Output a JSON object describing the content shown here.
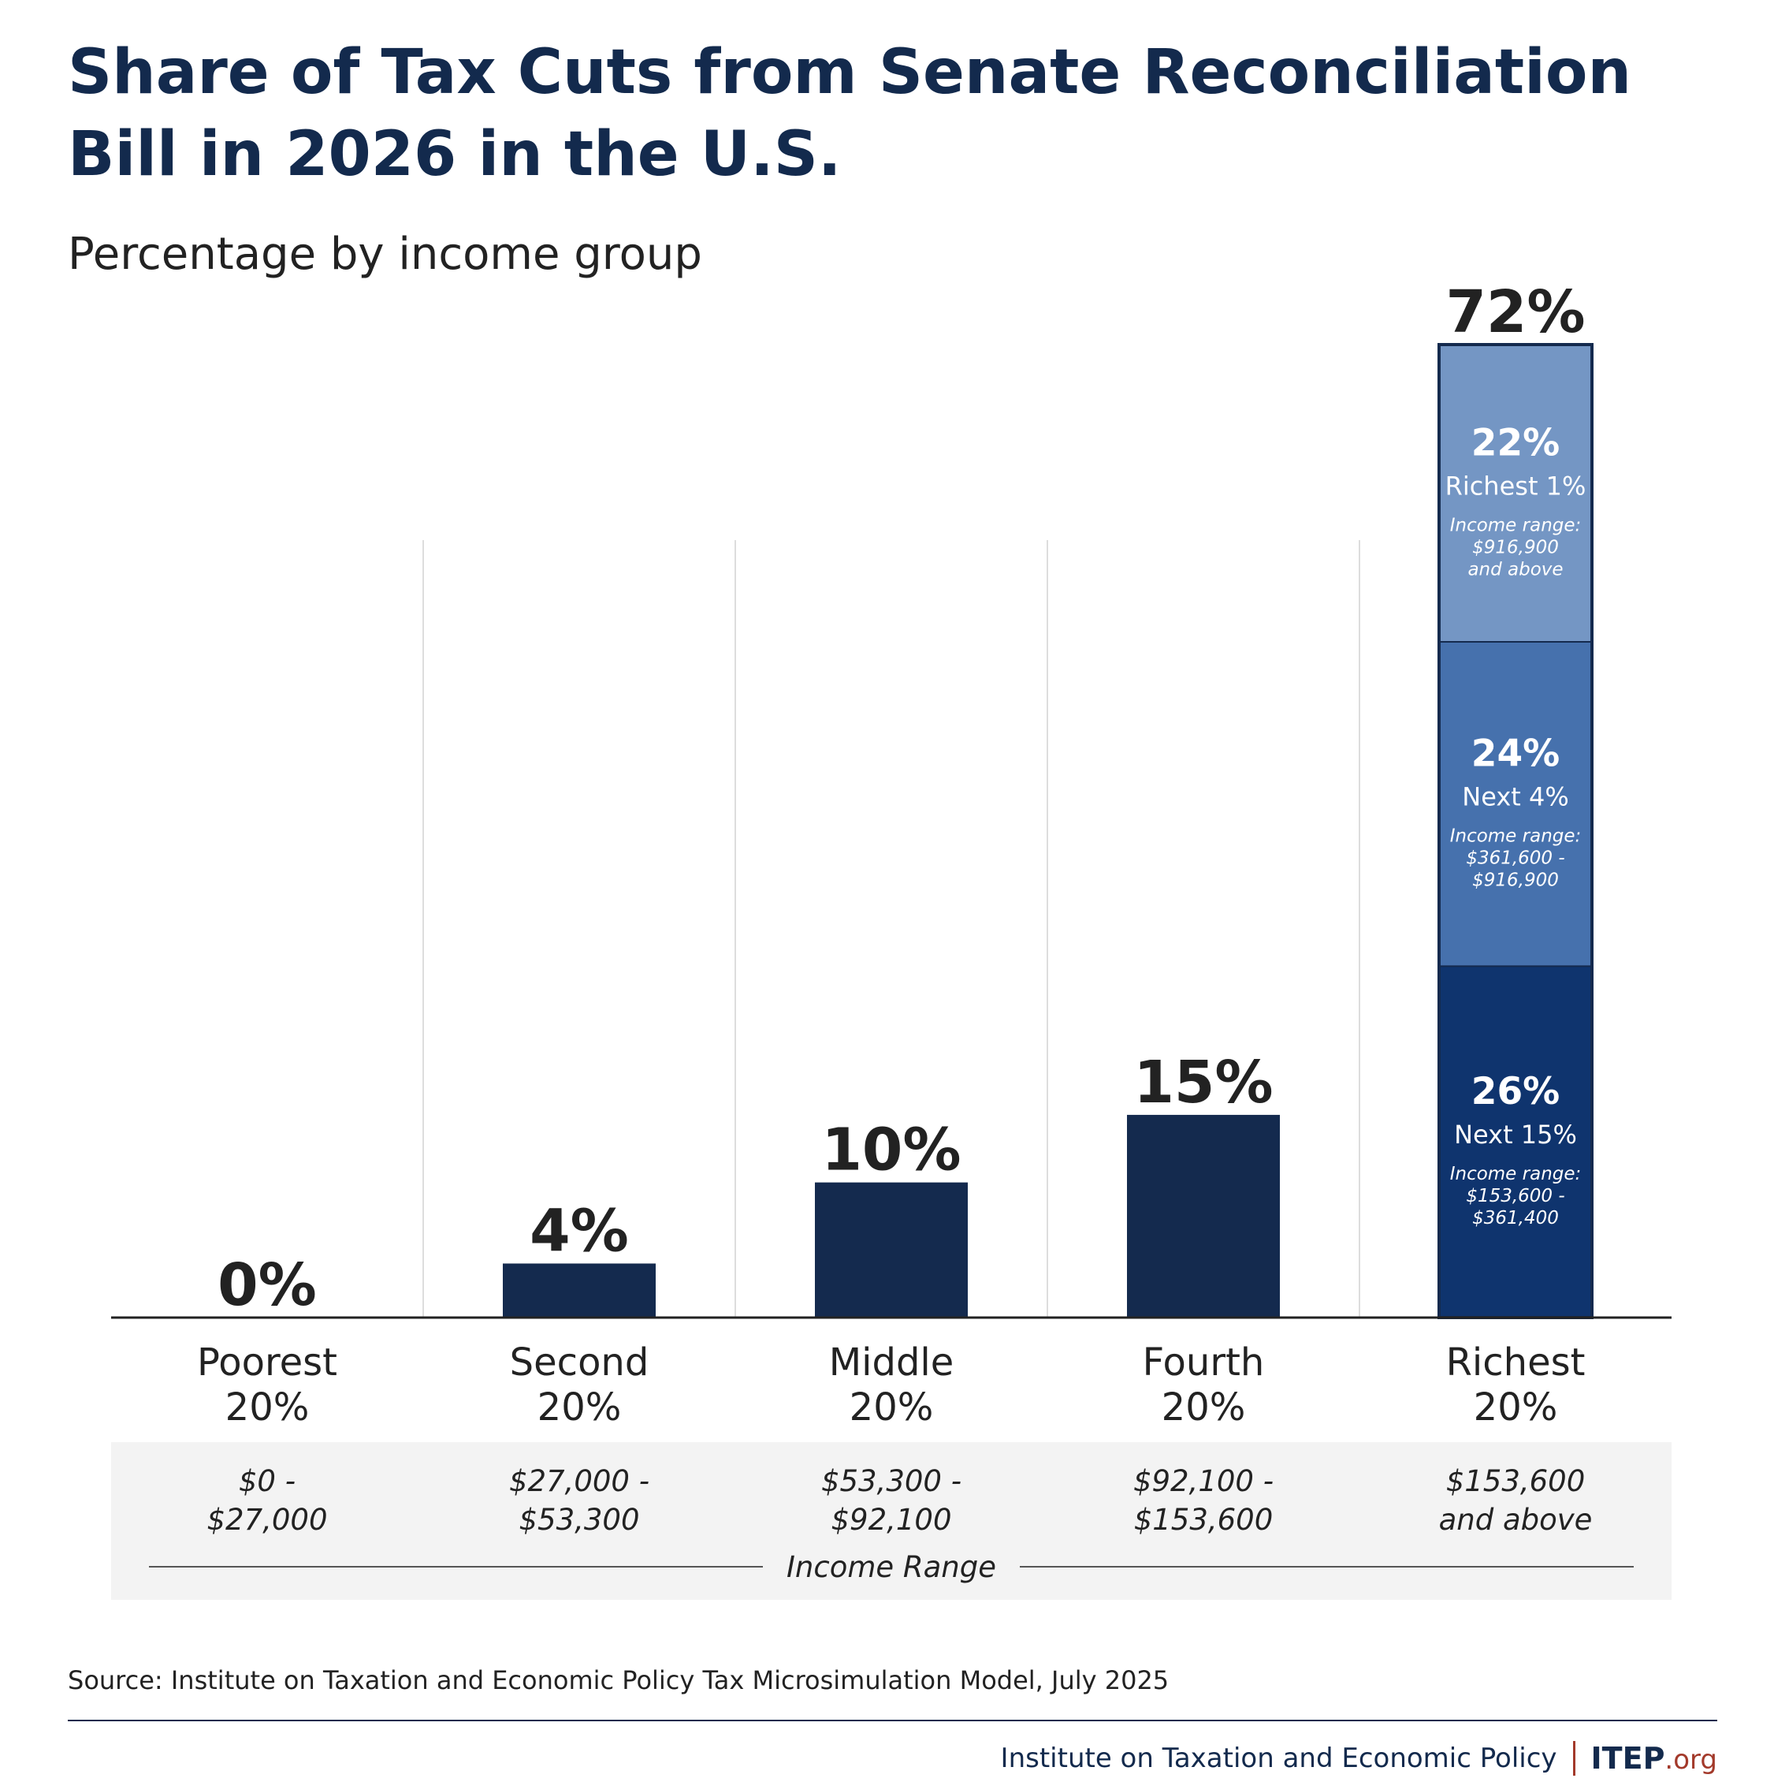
{
  "title": "Share of Tax Cuts from Senate Reconciliation Bill in 2026 in the U.S.",
  "subtitle": "Percentage by income group",
  "colors": {
    "bar": "#142a4e",
    "segment_top": "#7496c4",
    "segment_mid": "#4671ad",
    "segment_bottom": "#0f346e",
    "title": "#132a4d",
    "gridline": "#dddddd",
    "baseline": "#222222"
  },
  "chart_data": {
    "type": "bar",
    "ylim": [
      0,
      72
    ],
    "grid": true,
    "categories": [
      {
        "line1": "Poorest",
        "line2": "20%"
      },
      {
        "line1": "Second",
        "line2": "20%"
      },
      {
        "line1": "Middle",
        "line2": "20%"
      },
      {
        "line1": "Fourth",
        "line2": "20%"
      },
      {
        "line1": "Richest",
        "line2": "20%"
      }
    ],
    "values": [
      0,
      4,
      10,
      15,
      72
    ],
    "value_labels": [
      "0%",
      "4%",
      "10%",
      "15%",
      "72%"
    ],
    "income_ranges": [
      {
        "line1": "$0 -",
        "line2": "$27,000"
      },
      {
        "line1": "$27,000 -",
        "line2": "$53,300"
      },
      {
        "line1": "$53,300 -",
        "line2": "$92,100"
      },
      {
        "line1": "$92,100 -",
        "line2": "$153,600"
      },
      {
        "line1": "$153,600",
        "line2": "and above"
      }
    ],
    "income_range_caption": "Income Range",
    "stacked_breakdown": {
      "category_index": 4,
      "segments": [
        {
          "value": 26,
          "label": "26%",
          "name": "Next 15%",
          "range_title": "Income range:",
          "range_line1": "$153,600 -",
          "range_line2": "$361,400",
          "color_key": "segment_bottom"
        },
        {
          "value": 24,
          "label": "24%",
          "name": "Next 4%",
          "range_title": "Income range:",
          "range_line1": "$361,600 -",
          "range_line2": "$916,900",
          "color_key": "segment_mid"
        },
        {
          "value": 22,
          "label": "22%",
          "name": "Richest 1%",
          "range_title": "Income range:",
          "range_line1": "$916,900",
          "range_line2": "and above",
          "color_key": "segment_top"
        }
      ]
    }
  },
  "source": "Source: Institute on Taxation and Economic Policy Tax Microsimulation Model, July 2025",
  "footer": {
    "org_name": "Institute on Taxation and Economic Policy",
    "logo_main": "ITEP",
    "logo_suffix": ".org"
  }
}
